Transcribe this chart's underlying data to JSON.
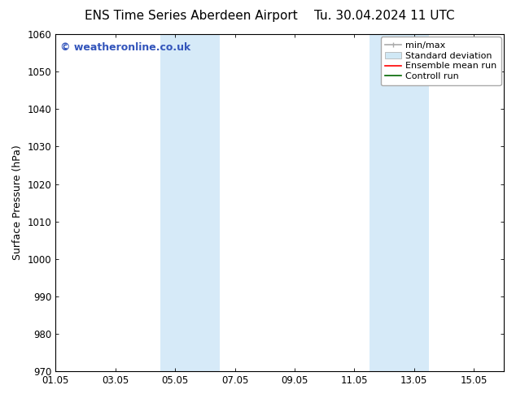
{
  "title_left": "ENS Time Series Aberdeen Airport",
  "title_right": "Tu. 30.04.2024 11 UTC",
  "ylabel": "Surface Pressure (hPa)",
  "ylim": [
    970,
    1060
  ],
  "yticks": [
    970,
    980,
    990,
    1000,
    1010,
    1020,
    1030,
    1040,
    1050,
    1060
  ],
  "xlim": [
    0,
    15
  ],
  "xtick_labels": [
    "01.05",
    "03.05",
    "05.05",
    "07.05",
    "09.05",
    "11.05",
    "13.05",
    "15.05"
  ],
  "xtick_positions": [
    0,
    2,
    4,
    6,
    8,
    10,
    12,
    14
  ],
  "shaded_bands": [
    {
      "xstart": 3.5,
      "xend": 5.5
    },
    {
      "xstart": 10.5,
      "xend": 12.5
    }
  ],
  "watermark_text": "© weatheronline.co.uk",
  "watermark_color": "#3355bb",
  "watermark_fontsize": 9,
  "background_color": "#ffffff",
  "plot_bg_color": "#ffffff",
  "title_fontsize": 11,
  "tick_fontsize": 8.5,
  "axis_label_fontsize": 9,
  "shade_color": "#d6eaf8",
  "shade_alpha": 1.0,
  "legend_fontsize": 8,
  "minmax_color": "#aaaaaa",
  "std_color": "#d0e8f5",
  "ensemble_color": "#ff0000",
  "control_color": "#006600"
}
